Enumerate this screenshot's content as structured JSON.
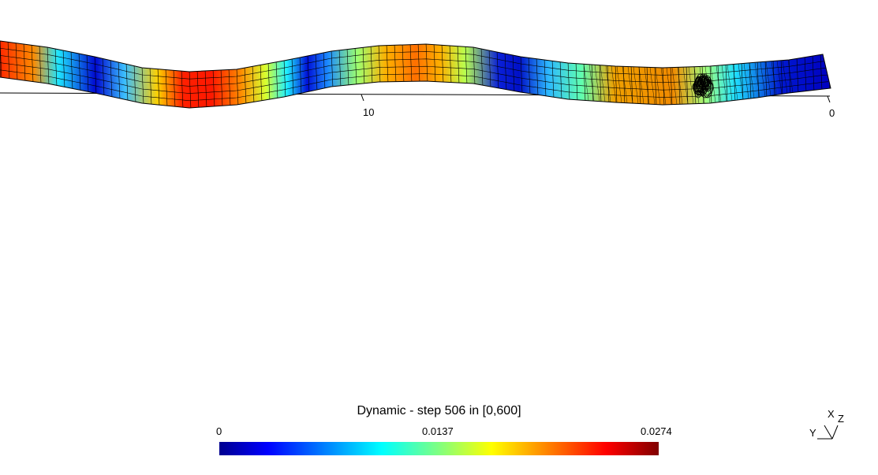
{
  "axis": {
    "tick_10": "10",
    "tick_0": "0"
  },
  "colorbar": {
    "title": "Dynamic - step 506 in [0,600]",
    "min_label": "0",
    "mid_label": "0.0137",
    "max_label": "0.0274",
    "min": 0,
    "max": 0.0274,
    "colormap": "jet"
  },
  "triad": {
    "x_label": "X",
    "y_label": "Y",
    "z_label": "Z"
  }
}
